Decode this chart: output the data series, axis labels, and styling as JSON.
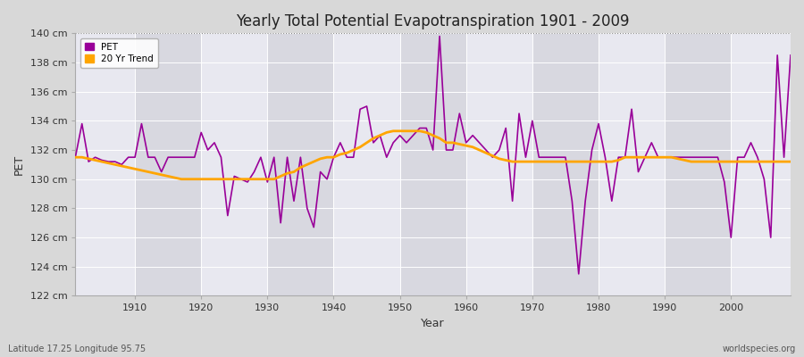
{
  "title": "Yearly Total Potential Evapotranspiration 1901 - 2009",
  "xlabel": "Year",
  "ylabel": "PET",
  "lat_lon_label": "Latitude 17.25 Longitude 95.75",
  "website_label": "worldspecies.org",
  "pet_color": "#990099",
  "trend_color": "#FFA500",
  "background_color": "#d8d8d8",
  "plot_bg_color": "#e0e0e8",
  "band_color_light": "#e8e8f0",
  "band_color_dark": "#d8d8e0",
  "grid_color": "#ffffff",
  "pet_linewidth": 1.2,
  "trend_linewidth": 2.0,
  "xlim": [
    1901,
    2009
  ],
  "ylim": [
    122,
    140
  ],
  "ytick_values": [
    122,
    124,
    126,
    128,
    130,
    132,
    134,
    136,
    138,
    140
  ],
  "xtick_values": [
    1910,
    1920,
    1930,
    1940,
    1950,
    1960,
    1970,
    1980,
    1990,
    2000
  ],
  "years": [
    1901,
    1902,
    1903,
    1904,
    1905,
    1906,
    1907,
    1908,
    1909,
    1910,
    1911,
    1912,
    1913,
    1914,
    1915,
    1916,
    1917,
    1918,
    1919,
    1920,
    1921,
    1922,
    1923,
    1924,
    1925,
    1926,
    1927,
    1928,
    1929,
    1930,
    1931,
    1932,
    1933,
    1934,
    1935,
    1936,
    1937,
    1938,
    1939,
    1940,
    1941,
    1942,
    1943,
    1944,
    1945,
    1946,
    1947,
    1948,
    1949,
    1950,
    1951,
    1952,
    1953,
    1954,
    1955,
    1956,
    1957,
    1958,
    1959,
    1960,
    1961,
    1962,
    1963,
    1964,
    1965,
    1966,
    1967,
    1968,
    1969,
    1970,
    1971,
    1972,
    1973,
    1974,
    1975,
    1976,
    1977,
    1978,
    1979,
    1980,
    1981,
    1982,
    1983,
    1984,
    1985,
    1986,
    1987,
    1988,
    1989,
    1990,
    1991,
    1992,
    1993,
    1994,
    1995,
    1996,
    1997,
    1998,
    1999,
    2000,
    2001,
    2002,
    2003,
    2004,
    2005,
    2006,
    2007,
    2008,
    2009
  ],
  "pet_values": [
    131.5,
    133.8,
    131.2,
    131.5,
    131.3,
    131.2,
    131.2,
    131.0,
    131.5,
    131.5,
    133.8,
    131.5,
    131.5,
    130.5,
    131.5,
    131.5,
    131.5,
    131.5,
    131.5,
    133.2,
    132.0,
    132.5,
    131.5,
    127.5,
    130.2,
    130.0,
    129.8,
    130.5,
    131.5,
    129.8,
    131.5,
    127.0,
    131.5,
    128.5,
    131.5,
    128.0,
    126.7,
    130.5,
    130.0,
    131.5,
    132.5,
    131.5,
    131.5,
    134.8,
    135.0,
    132.5,
    133.0,
    131.5,
    132.5,
    133.0,
    132.5,
    133.0,
    133.5,
    133.5,
    132.0,
    139.8,
    132.0,
    132.0,
    134.5,
    132.5,
    133.0,
    132.5,
    132.0,
    131.5,
    132.0,
    133.5,
    128.5,
    134.5,
    131.5,
    134.0,
    131.5,
    131.5,
    131.5,
    131.5,
    131.5,
    128.5,
    123.5,
    128.5,
    132.0,
    133.8,
    131.5,
    128.5,
    131.5,
    131.5,
    134.8,
    130.5,
    131.5,
    132.5,
    131.5,
    131.5,
    131.5,
    131.5,
    131.5,
    131.5,
    131.5,
    131.5,
    131.5,
    131.5,
    129.8,
    126.0,
    131.5,
    131.5,
    132.5,
    131.5,
    130.0,
    126.0,
    138.5,
    131.5,
    138.5
  ],
  "trend_values": [
    131.5,
    131.5,
    131.4,
    131.3,
    131.2,
    131.1,
    131.0,
    130.9,
    130.8,
    130.7,
    130.6,
    130.5,
    130.4,
    130.3,
    130.2,
    130.1,
    130.0,
    130.0,
    130.0,
    130.0,
    130.0,
    130.0,
    130.0,
    130.0,
    130.0,
    130.0,
    130.0,
    130.0,
    130.0,
    130.0,
    130.0,
    130.2,
    130.4,
    130.5,
    130.8,
    131.0,
    131.2,
    131.4,
    131.5,
    131.5,
    131.7,
    131.8,
    132.0,
    132.2,
    132.5,
    132.8,
    133.0,
    133.2,
    133.3,
    133.3,
    133.3,
    133.3,
    133.3,
    133.2,
    133.0,
    132.8,
    132.5,
    132.5,
    132.4,
    132.3,
    132.2,
    132.0,
    131.8,
    131.6,
    131.4,
    131.3,
    131.2,
    131.2,
    131.2,
    131.2,
    131.2,
    131.2,
    131.2,
    131.2,
    131.2,
    131.2,
    131.2,
    131.2,
    131.2,
    131.2,
    131.2,
    131.2,
    131.3,
    131.5,
    131.5,
    131.5,
    131.5,
    131.5,
    131.5,
    131.5,
    131.5,
    131.4,
    131.3,
    131.2,
    131.2,
    131.2,
    131.2,
    131.2,
    131.2,
    131.2,
    131.2,
    131.2,
    131.2,
    131.2,
    131.2,
    131.2,
    131.2,
    131.2,
    131.2
  ]
}
